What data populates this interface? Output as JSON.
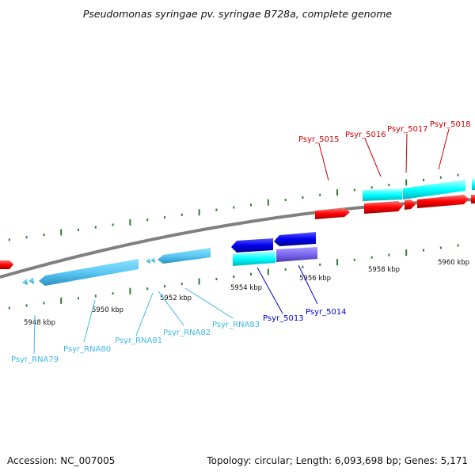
{
  "title": "Pseudomonas syringae pv. syringae B728a, complete genome",
  "footer": {
    "accession": "Accession: NC_007005",
    "summary": "Topology: circular; Length: 6,093,698 bp; Genes: 5,171"
  },
  "colors": {
    "backbone": "#808080",
    "tick": "#2e7d32",
    "forward_gene": "#ff0000",
    "forward_cds_cyan": "#00ffff",
    "reverse_gene": "#0000ff",
    "reverse_cds_cyan": "#00ffff",
    "reverse_feature_purple": "#7b68ee",
    "rna_feature": "#5bc8f5",
    "label_red": "#cc0000",
    "label_blue": "#0000cc",
    "label_cyan": "#3fb7e6"
  },
  "scale_labels": {
    "kbp5948": "5948 kbp",
    "kbp5950": "5950 kbp",
    "kbp5952": "5952 kbp",
    "kbp5954": "5954 kbp",
    "kbp5956": "5956 kbp",
    "kbp5958": "5958 kbp",
    "kbp5960": "5960 kbp"
  },
  "gene_labels": {
    "psyr5015": "Psyr_5015",
    "psyr5016": "Psyr_5016",
    "psyr5017": "Psyr_5017",
    "psyr5018": "Psyr_5018",
    "psyr5013": "Psyr_5013",
    "psyr5014": "Psyr_5014",
    "rna79": "Psyr_RNA79",
    "rna80": "Psyr_RNA80",
    "rna81": "Psyr_RNA81",
    "rna82": "Psyr_RNA82",
    "rna83": "Psyr_RNA83"
  }
}
